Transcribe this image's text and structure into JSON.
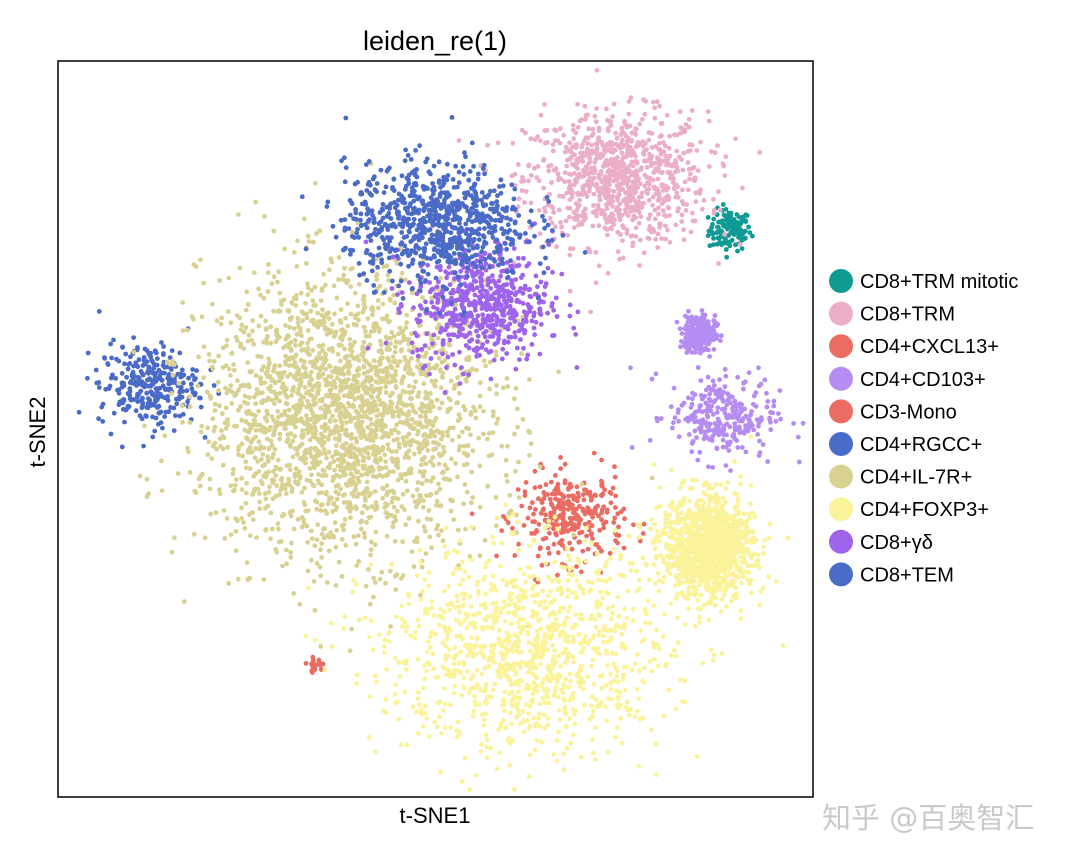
{
  "chart_data": {
    "type": "scatter",
    "title": "leiden_re(1)",
    "xlabel": "t-SNE1",
    "ylabel": "t-SNE2",
    "xticks": [],
    "yticks": [],
    "grid": false,
    "legend_position": "right",
    "xlim": [
      0,
      100
    ],
    "ylim": [
      0,
      100
    ],
    "series": [
      {
        "name": "CD8+TRM mitotic",
        "color": "#0f9a94",
        "n": 120,
        "clusters": [
          {
            "x": 89,
            "y": 77,
            "sx": 1.4,
            "sy": 1.4
          }
        ]
      },
      {
        "name": "CD8+TRM",
        "color": "#ebaec9",
        "n": 900,
        "clusters": [
          {
            "x": 74,
            "y": 84,
            "sx": 6,
            "sy": 4.5
          }
        ]
      },
      {
        "name": "CD4+CXCL13+",
        "color": "#ea6c62",
        "n": 300,
        "clusters": [
          {
            "x": 68,
            "y": 38,
            "sx": 3.5,
            "sy": 3
          }
        ]
      },
      {
        "name": "CD4+CD103+",
        "color": "#b58df2",
        "n": 550,
        "clusters": [
          {
            "x": 88,
            "y": 52,
            "sx": 3.6,
            "sy": 3
          },
          {
            "x": 85,
            "y": 63,
            "sx": 1,
            "sy": 1.2
          }
        ]
      },
      {
        "name": "CD3-Mono",
        "color": "#ea6c62",
        "n": 25,
        "clusters": [
          {
            "x": 34,
            "y": 18,
            "sx": 0.5,
            "sy": 0.4
          }
        ]
      },
      {
        "name": "CD4+RGCC+",
        "color": "#4a6bc6",
        "n": 300,
        "clusters": [
          {
            "x": 12,
            "y": 56,
            "sx": 3.3,
            "sy": 2.8
          }
        ]
      },
      {
        "name": "CD4+IL-7R+",
        "color": "#d9d192",
        "n": 2300,
        "clusters": [
          {
            "x": 38,
            "y": 52,
            "sx": 9.5,
            "sy": 9.5
          }
        ]
      },
      {
        "name": "CD4+FOXP3+",
        "color": "#fbf39a",
        "n": 2200,
        "clusters": [
          {
            "x": 62,
            "y": 20,
            "sx": 9.5,
            "sy": 7
          },
          {
            "x": 86,
            "y": 34,
            "sx": 3,
            "sy": 3.5
          }
        ]
      },
      {
        "name": "CD8+γδ",
        "color": "#9e64ec",
        "n": 600,
        "clusters": [
          {
            "x": 56,
            "y": 67,
            "sx": 4.5,
            "sy": 4
          }
        ]
      },
      {
        "name": "CD8+TEM",
        "color": "#4a6bc6",
        "n": 800,
        "clusters": [
          {
            "x": 50,
            "y": 78,
            "sx": 6,
            "sy": 4
          }
        ]
      }
    ]
  },
  "watermark": "知乎 @百奥智汇"
}
